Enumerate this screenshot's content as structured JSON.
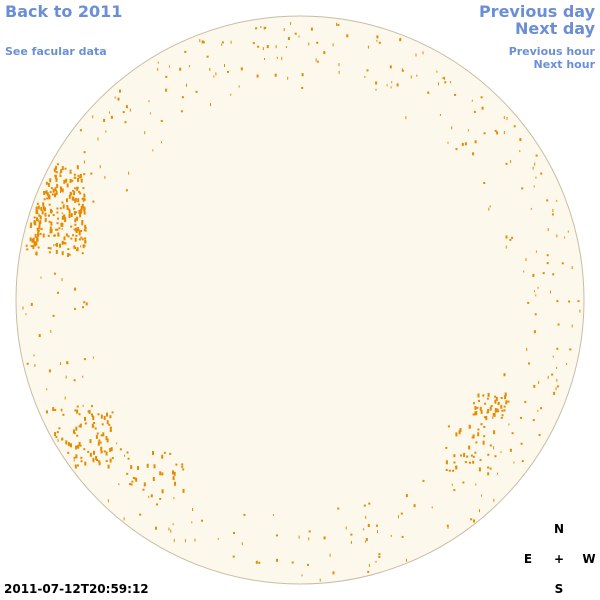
{
  "nav": {
    "back": "Back to 2011",
    "facular": "See facular data",
    "previous_day": "Previous day",
    "next_day": "Next day",
    "previous_hour": "Previous hour",
    "next_hour": "Next hour"
  },
  "timestamp": "2011-07-12T20:59:12",
  "compass": {
    "north": "N",
    "east": "E",
    "center": "+",
    "west": "W",
    "south": "S"
  },
  "colors": {
    "disk_fill": "#fdf8ec",
    "disk_edge": "#c9bca4",
    "feature": "#e68a00",
    "link": "#6b8fd6"
  }
}
